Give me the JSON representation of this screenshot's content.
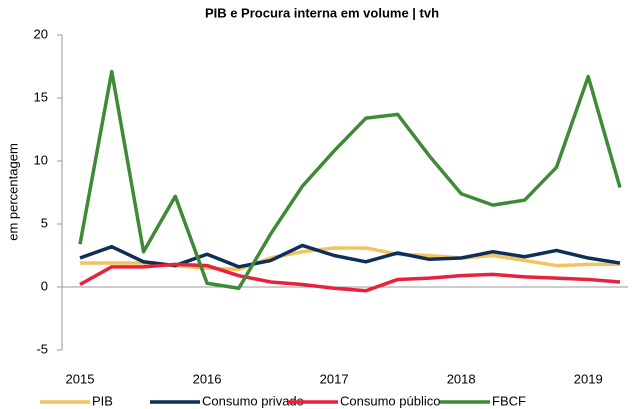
{
  "chart_data": {
    "type": "line",
    "title": "PIB e Procura interna em volume | tvh",
    "y_label": "em percentagem",
    "categories": [
      "2015",
      null,
      null,
      null,
      "2016",
      null,
      null,
      null,
      "2017",
      null,
      null,
      null,
      "2018",
      null,
      null,
      null,
      "2019",
      null
    ],
    "series": [
      {
        "name": "PIB",
        "color": "#f2c45f",
        "values": [
          1.9,
          1.9,
          1.9,
          1.7,
          1.5,
          1.4,
          2.3,
          2.8,
          3.1,
          3.1,
          2.6,
          2.5,
          2.3,
          2.5,
          2.1,
          1.7,
          1.8,
          1.8
        ]
      },
      {
        "name": "Consumo privado",
        "color": "#0d2f5a",
        "values": [
          2.3,
          3.2,
          2.0,
          1.7,
          2.6,
          1.6,
          2.1,
          3.3,
          2.5,
          2.0,
          2.7,
          2.2,
          2.3,
          2.8,
          2.4,
          2.9,
          2.3,
          1.9
        ]
      },
      {
        "name": "Consumo público",
        "color": "#e8213f",
        "values": [
          0.2,
          1.6,
          1.6,
          1.8,
          1.7,
          0.9,
          0.4,
          0.2,
          -0.1,
          -0.3,
          0.6,
          0.7,
          0.9,
          1.0,
          0.8,
          0.7,
          0.6,
          0.4
        ]
      },
      {
        "name": "FBCF",
        "color": "#3f8a36",
        "values": [
          3.4,
          17.1,
          2.8,
          7.2,
          0.3,
          -0.1,
          4.2,
          8.0,
          10.8,
          13.4,
          13.7,
          10.4,
          7.4,
          6.5,
          6.9,
          9.5,
          16.7,
          7.9
        ]
      }
    ],
    "ylim": [
      -5,
      20
    ],
    "yticks": [
      -5,
      0,
      5,
      10,
      15,
      20
    ],
    "grid": false,
    "legend": "bottom"
  }
}
